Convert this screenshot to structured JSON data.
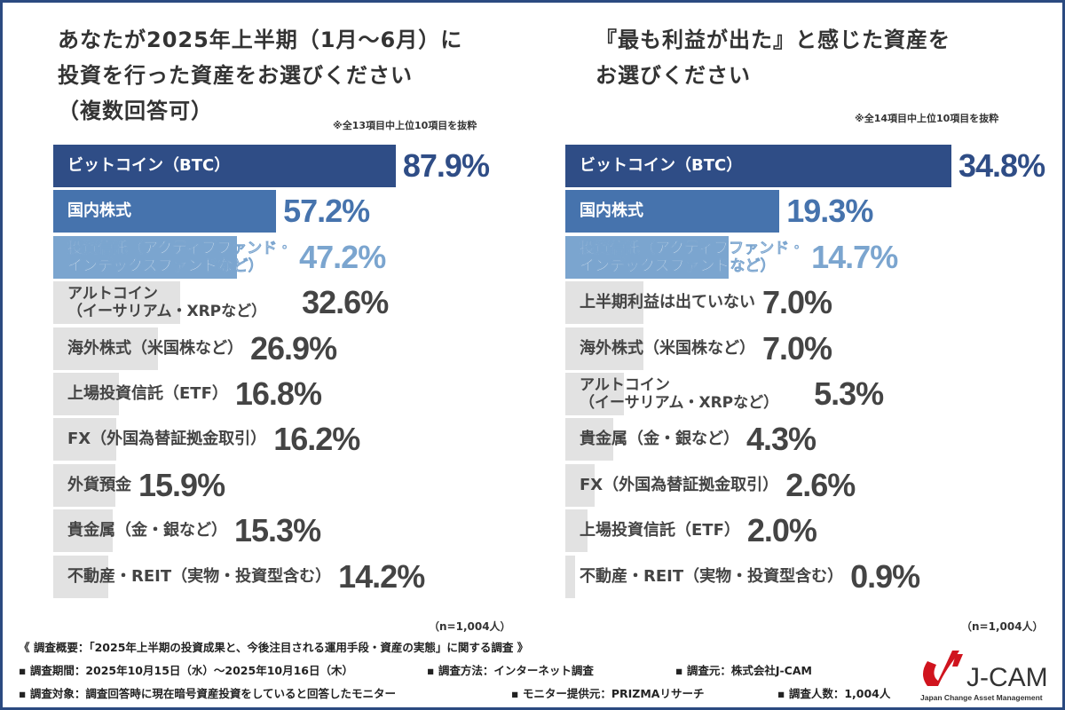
{
  "colors": {
    "c1": "#2f4d86",
    "c2": "#4673ad",
    "c3": "#7ba5cf",
    "gray": "#e2e2e2",
    "grayText": "#444444"
  },
  "chart_data": [
    {
      "type": "bar",
      "orientation": "horizontal",
      "title": "あなたが2025年上半期（1月〜6月）に投資を行った資産をお選びください（複数回答可）",
      "title_lines": [
        "あなたが2025年上半期（1月〜6月）に",
        "投資を行った資産をお選びください",
        "（複数回答可）"
      ],
      "note": "※全13項目中上位10項目を抜粋",
      "n": "（n=1,004人）",
      "categories": [
        [
          "ビットコイン（BTC）"
        ],
        [
          "国内株式"
        ],
        [
          "投資信託（アクティブファンド・",
          "インデックスファンドなど）"
        ],
        [
          "アルトコイン",
          "（イーサリアム・XRPなど）"
        ],
        [
          "海外株式（米国株など）"
        ],
        [
          "上場投資信託（ETF）"
        ],
        [
          "FX（外国為替証拠金取引）"
        ],
        [
          "外貨預金"
        ],
        [
          "貴金属（金・銀など）"
        ],
        [
          "不動産・REIT（実物・投資型含む）"
        ]
      ],
      "values": [
        87.9,
        57.2,
        47.2,
        32.6,
        26.9,
        16.8,
        16.2,
        15.9,
        15.3,
        14.2
      ],
      "labels": [
        "87.9%",
        "57.2%",
        "47.2%",
        "32.6%",
        "26.9%",
        "16.8%",
        "16.2%",
        "15.9%",
        "15.3%",
        "14.2%"
      ],
      "unit": "%"
    },
    {
      "type": "bar",
      "orientation": "horizontal",
      "title": "『最も利益が出た』と感じた資産をお選びください",
      "title_lines": [
        "『最も利益が出た』と感じた資産を",
        "お選びください"
      ],
      "note": "※全14項目中上位10項目を抜粋",
      "n": "（n=1,004人）",
      "categories": [
        [
          "ビットコイン（BTC）"
        ],
        [
          "国内株式"
        ],
        [
          "投資信託（アクティブファンド・",
          "インデックスファンドなど）"
        ],
        [
          "上半期利益は出ていない"
        ],
        [
          "海外株式（米国株など）"
        ],
        [
          "アルトコイン",
          "（イーサリアム・XRPなど）"
        ],
        [
          "貴金属（金・銀など）"
        ],
        [
          "FX（外国為替証拠金取引）"
        ],
        [
          "上場投資信託（ETF）"
        ],
        [
          "不動産・REIT（実物・投資型含む）"
        ]
      ],
      "values": [
        34.8,
        19.3,
        14.7,
        7.0,
        7.0,
        5.3,
        4.3,
        2.6,
        2.0,
        0.9
      ],
      "labels": [
        "34.8%",
        "19.3%",
        "14.7%",
        "7.0%",
        "7.0%",
        "5.3%",
        "4.3%",
        "2.6%",
        "2.0%",
        "0.9%"
      ],
      "unit": "%"
    }
  ],
  "footer": {
    "summary": "《 調査概要：「2025年上半期の投資成果と、今後注目される運用手段・資産の実態」に関する調査 》",
    "period": "▪ 調査期間：2025年10月15日（水）～2025年10月16日（木）",
    "method": "▪ 調査方法：インターネット調査",
    "source": "▪ 調査元：株式会社J-CAM",
    "target": "▪ 調査対象：調査回答時に現在暗号資産投資をしていると回答したモニター",
    "provider": "▪ モニター提供元：PRIZMAリサーチ",
    "count": "▪ 調査人数：1,004人"
  },
  "logo": {
    "name": "J-CAM",
    "tagline": "Japan Change Asset Management",
    "color": "#d0141e"
  }
}
